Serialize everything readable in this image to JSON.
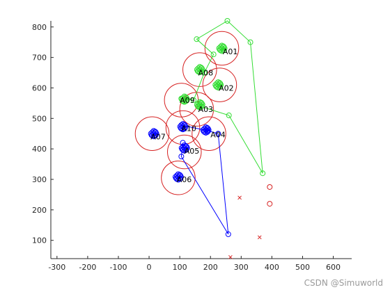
{
  "chart_data": {
    "type": "scatter",
    "xlim": [
      -320,
      660
    ],
    "ylim": [
      40,
      820
    ],
    "x_ticks": [
      -300,
      -200,
      -100,
      0,
      100,
      200,
      300,
      400,
      500,
      600
    ],
    "y_ticks": [
      100,
      200,
      300,
      400,
      500,
      600,
      700,
      800
    ],
    "x_tick_labels": [
      "-300",
      "-200",
      "-100",
      "0",
      "100",
      "200",
      "300",
      "400",
      "500",
      "600"
    ],
    "y_tick_labels": [
      "100",
      "200",
      "300",
      "400",
      "500",
      "600",
      "700",
      "800"
    ],
    "grid": false,
    "colors": {
      "blue": "#0000ff",
      "green": "#33dd33",
      "red": "#d62020",
      "axis": "#262626"
    },
    "range_circles": {
      "radius": 55,
      "centers": [
        [
          237,
          730
        ],
        [
          230,
          610
        ],
        [
          165,
          660
        ],
        [
          105,
          560
        ],
        [
          155,
          530
        ],
        [
          195,
          450
        ],
        [
          115,
          390
        ],
        [
          95,
          305
        ],
        [
          10,
          450
        ],
        [
          110,
          470
        ]
      ]
    },
    "labeled_points": [
      {
        "label": "A01",
        "x": 240,
        "y": 720
      },
      {
        "label": "A02",
        "x": 227,
        "y": 600
      },
      {
        "label": "A03",
        "x": 160,
        "y": 530
      },
      {
        "label": "A04",
        "x": 200,
        "y": 447
      },
      {
        "label": "A05",
        "x": 115,
        "y": 393
      },
      {
        "label": "A06",
        "x": 90,
        "y": 300
      },
      {
        "label": "A07",
        "x": 5,
        "y": 440
      },
      {
        "label": "A08",
        "x": 160,
        "y": 650
      },
      {
        "label": "A09",
        "x": 100,
        "y": 560
      },
      {
        "label": "A10",
        "x": 105,
        "y": 468
      }
    ],
    "green_clusters": [
      [
        237,
        730
      ],
      [
        225,
        610
      ],
      [
        165,
        660
      ],
      [
        115,
        563
      ],
      [
        165,
        545
      ]
    ],
    "blue_clusters": [
      [
        185,
        462
      ],
      [
        115,
        403
      ],
      [
        95,
        308
      ],
      [
        15,
        450
      ],
      [
        110,
        473
      ]
    ],
    "green_path": [
      [
        105,
        565
      ],
      [
        145,
        560
      ],
      [
        180,
        650
      ],
      [
        210,
        710
      ],
      [
        155,
        760
      ],
      [
        255,
        820
      ],
      [
        330,
        750
      ],
      [
        370,
        320
      ],
      [
        260,
        510
      ],
      [
        165,
        540
      ]
    ],
    "blue_path": [
      [
        105,
        478
      ],
      [
        190,
        460
      ],
      [
        225,
        450
      ],
      [
        258,
        120
      ],
      [
        105,
        375
      ],
      [
        110,
        420
      ]
    ],
    "red_circle_markers": [
      [
        393,
        275
      ],
      [
        393,
        220
      ]
    ],
    "red_x_markers": [
      [
        295,
        240
      ],
      [
        360,
        110
      ],
      [
        265,
        45
      ]
    ]
  },
  "watermark": {
    "text": "CSDN @Simuworld"
  }
}
